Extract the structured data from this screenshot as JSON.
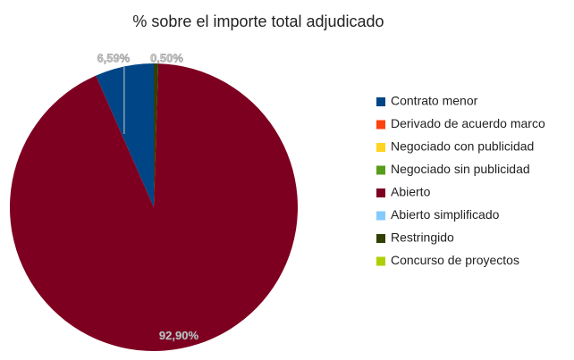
{
  "chart_data": {
    "type": "pie",
    "title": "% sobre el importe total adjudicado",
    "categories": [
      "Contrato menor",
      "Derivado de acuerdo marco",
      "Negociado con publicidad",
      "Negociado sin publicidad",
      "Abierto",
      "Abierto simplificado",
      "Restringido",
      "Concurso de proyectos"
    ],
    "values": [
      6.59,
      0,
      0,
      0,
      92.9,
      0,
      0.5,
      0
    ],
    "value_labels": [
      "6,59%",
      null,
      null,
      null,
      "92,90%",
      null,
      "0,50%",
      null
    ],
    "colors": [
      "#004586",
      "#ff420e",
      "#ffd320",
      "#579d1c",
      "#7e0021",
      "#83caff",
      "#314004",
      "#aecf00"
    ],
    "legend": "right"
  }
}
